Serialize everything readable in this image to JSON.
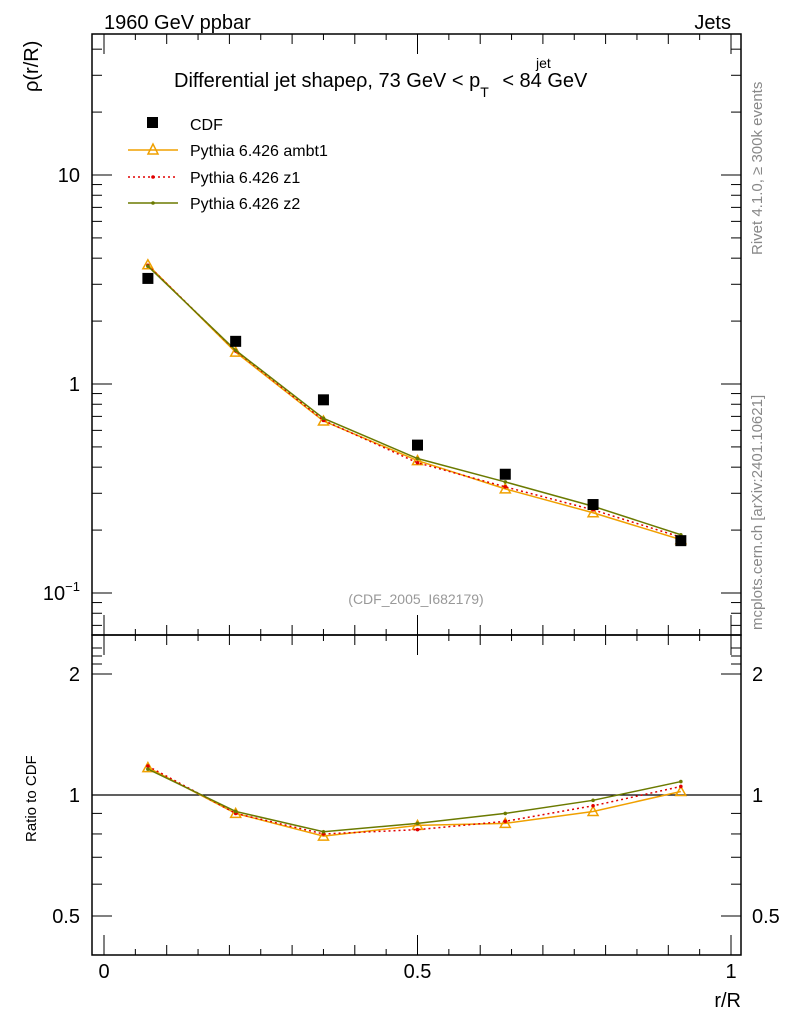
{
  "header": {
    "left_label": "1960 GeV ppbar",
    "right_label": "Jets"
  },
  "side_labels": {
    "rivet": "Rivet 4.1.0, ≥ 300k events",
    "mcplots": "mcplots.cern.ch [arXiv:2401.10621]"
  },
  "chart_data": [
    {
      "type": "scatter",
      "panel": "main",
      "scale": "log",
      "title_main": "Differential jet shapeρ, 73 GeV < p",
      "title_sup": "jet",
      "title_sub": "T",
      "title_end": " < 84 GeV",
      "ylabel": "ρ(r/R)",
      "xlabel": "r/R",
      "annotation": "(CDF_2005_I682179)",
      "xlim": [
        0,
        1
      ],
      "ylim": [
        0.07,
        50
      ],
      "y_ticks": [
        {
          "value": 0.1,
          "label_base": "10",
          "label_exp": "−1"
        },
        {
          "value": 1,
          "label_base": "1",
          "label_exp": ""
        },
        {
          "value": 10,
          "label_base": "10",
          "label_exp": ""
        }
      ],
      "x": [
        0.07,
        0.21,
        0.35,
        0.5,
        0.64,
        0.78,
        0.92
      ],
      "series": [
        {
          "name": "CDF",
          "style": "data",
          "color": "#000000",
          "values": [
            3.2,
            1.6,
            0.84,
            0.51,
            0.37,
            0.265,
            0.178
          ]
        },
        {
          "name": "Pythia 6.426 ambt1",
          "style": "triangle",
          "color": "#f0a000",
          "values": [
            3.72,
            1.42,
            0.665,
            0.43,
            0.315,
            0.242,
            0.18
          ]
        },
        {
          "name": "Pythia 6.426 z1",
          "style": "dotted",
          "color": "#e00000",
          "values": [
            3.7,
            1.44,
            0.67,
            0.42,
            0.322,
            0.25,
            0.185
          ]
        },
        {
          "name": "Pythia 6.426 z2",
          "style": "solid-dot",
          "color": "#6b7a00",
          "values": [
            3.66,
            1.45,
            0.685,
            0.44,
            0.34,
            0.26,
            0.19
          ]
        }
      ]
    },
    {
      "type": "line",
      "panel": "ratio",
      "scale": "log",
      "ylabel": "Ratio to CDF",
      "xlabel": "r/R",
      "xlim": [
        0,
        1
      ],
      "ylim": [
        0.4,
        2.5
      ],
      "y_ticks": [
        {
          "value": 0.5,
          "label": "0.5"
        },
        {
          "value": 1,
          "label": "1"
        },
        {
          "value": 2,
          "label": "2"
        }
      ],
      "x_ticks": [
        {
          "value": 0,
          "label": "0"
        },
        {
          "value": 0.5,
          "label": "0.5"
        },
        {
          "value": 1,
          "label": "1"
        }
      ],
      "x": [
        0.07,
        0.21,
        0.35,
        0.5,
        0.64,
        0.78,
        0.92
      ],
      "reference": 1,
      "series": [
        {
          "name": "Pythia 6.426 ambt1",
          "style": "triangle",
          "color": "#f0a000",
          "values": [
            1.17,
            0.9,
            0.79,
            0.84,
            0.85,
            0.91,
            1.02
          ]
        },
        {
          "name": "Pythia 6.426 z1",
          "style": "dotted",
          "color": "#e00000",
          "values": [
            1.18,
            0.9,
            0.8,
            0.82,
            0.86,
            0.94,
            1.05
          ]
        },
        {
          "name": "Pythia 6.426 z2",
          "style": "solid-dot",
          "color": "#6b7a00",
          "values": [
            1.16,
            0.91,
            0.81,
            0.85,
            0.9,
            0.97,
            1.08
          ]
        }
      ]
    }
  ]
}
